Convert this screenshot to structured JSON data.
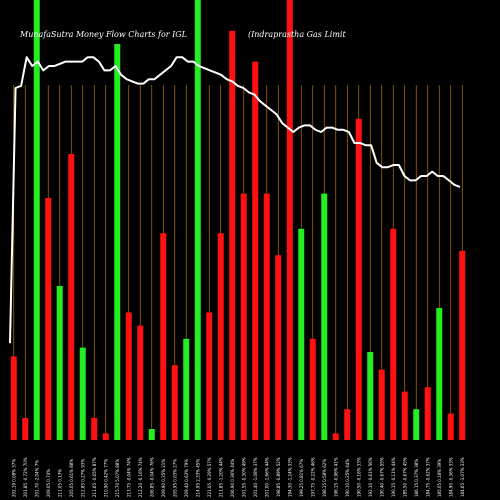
{
  "chart_data": {
    "type": "bar",
    "title": "MunafaSutra  Money Flow  Charts for IGL",
    "subtitle": "(Indraprastha  Gas Limit",
    "colors": {
      "background": "#000000",
      "up": "#22ee22",
      "down": "#ff1111",
      "line": "#ffffff",
      "grid": "#b8730a"
    },
    "ylim": [
      0,
      100
    ],
    "bars": [
      {
        "value": 19,
        "dir": "down",
        "label": "202.19 0.08% 37%"
      },
      {
        "value": 5,
        "dir": "down",
        "label": "201.85 -0.72% 70%"
      },
      {
        "value": 100,
        "dir": "up",
        "label": "201.70 -2.04% 7%"
      },
      {
        "value": 55,
        "dir": "down",
        "label": "209.05 0.74%"
      },
      {
        "value": 35,
        "dir": "up",
        "label": "211.05 0.13%"
      },
      {
        "value": 65,
        "dir": "down",
        "label": "205.05 0.61% 88%"
      },
      {
        "value": 21,
        "dir": "up",
        "label": "212.85 0.27% 93%"
      },
      {
        "value": 5,
        "dir": "down",
        "label": "211.65 -0.65% 87%"
      },
      {
        "value": 1.5,
        "dir": "down",
        "label": "210.90 0.42% 77%"
      },
      {
        "value": 90,
        "dir": "up",
        "label": "215.70 5.07% 88%"
      },
      {
        "value": 29,
        "dir": "down",
        "label": "213.75 -0.04% 74%"
      },
      {
        "value": 26,
        "dir": "down",
        "label": "212.20 -0.16% 74%"
      },
      {
        "value": 2.5,
        "dir": "up",
        "label": "206.85 -0.04% 76%"
      },
      {
        "value": 47,
        "dir": "down",
        "label": "209.90 0.35% 21%"
      },
      {
        "value": 17,
        "dir": "down",
        "label": "205.95 0.03% 27%"
      },
      {
        "value": 23,
        "dir": "up",
        "label": "209.40 0.63% 79%"
      },
      {
        "value": 100,
        "dir": "up",
        "label": "214.95 2.33% 45%"
      },
      {
        "value": 29,
        "dir": "down",
        "label": "221.05 -0.29% 57%"
      },
      {
        "value": 47,
        "dir": "down",
        "label": "211.85 -1.20% 44%"
      },
      {
        "value": 93,
        "dir": "down",
        "label": "206.90 0.36% 44%"
      },
      {
        "value": 56,
        "dir": "down",
        "label": "201.55 -0.30% 49%"
      },
      {
        "value": 86,
        "dir": "down",
        "label": "201.40 -1.08% 37%"
      },
      {
        "value": 56,
        "dir": "down",
        "label": "201.00 -1.66% 44%"
      },
      {
        "value": 42,
        "dir": "down",
        "label": "198.85 -0.89% 52%"
      },
      {
        "value": 100,
        "dir": "down",
        "label": "194.30 -1.24% 33%"
      },
      {
        "value": 48,
        "dir": "up",
        "label": "199.25 0.81% 67%"
      },
      {
        "value": 23,
        "dir": "down",
        "label": "197.75 -0.22% 46%"
      },
      {
        "value": 56,
        "dir": "up",
        "label": "198.15 0.58% 62%"
      },
      {
        "value": 1.5,
        "dir": "down",
        "label": "196.15 -0.96% 41%"
      },
      {
        "value": 7,
        "dir": "down",
        "label": "190.10 0.25% 44%"
      },
      {
        "value": 73,
        "dir": "down",
        "label": "190.50 -0.16% 33%"
      },
      {
        "value": 20,
        "dir": "up",
        "label": "192.10 -0.61% 56%"
      },
      {
        "value": 16,
        "dir": "down",
        "label": "190.40 -0.67% 55%"
      },
      {
        "value": 48,
        "dir": "down",
        "label": "190.15 -0.11% 44%"
      },
      {
        "value": 11,
        "dir": "down",
        "label": "185.50 -0.67% 45%"
      },
      {
        "value": 7,
        "dir": "up",
        "label": "186.15 0.37% 38%"
      },
      {
        "value": 12,
        "dir": "down",
        "label": "184.75 -0.62% 37%"
      },
      {
        "value": 30,
        "dir": "up",
        "label": "185.05 0.18% 39%"
      },
      {
        "value": 6,
        "dir": "down",
        "label": "184.90 -0.36% 33%"
      },
      {
        "value": 43,
        "dir": "down",
        "label": "184.65 -1.07% 33%"
      }
    ],
    "price_line": [
      22,
      80,
      80.5,
      87,
      85,
      86,
      84,
      85,
      85,
      85.5,
      86,
      86,
      86,
      86,
      87,
      87,
      86,
      84,
      84,
      85,
      83,
      82,
      81.5,
      81,
      81,
      82,
      82,
      83,
      84,
      85,
      87,
      87,
      86,
      86,
      85,
      84.5,
      84,
      83.5,
      83,
      82,
      81.5,
      80.5,
      80,
      79,
      78.5,
      77,
      76,
      75,
      74,
      72,
      71,
      70,
      71,
      71.5,
      71.5,
      70.5,
      70,
      71,
      71,
      70.5,
      70.5,
      70,
      67.5,
      67.5,
      67,
      67,
      63,
      62,
      62,
      62.5,
      62.5,
      60,
      59,
      59,
      60,
      60,
      61,
      60,
      60,
      59,
      58,
      57.5
    ]
  }
}
